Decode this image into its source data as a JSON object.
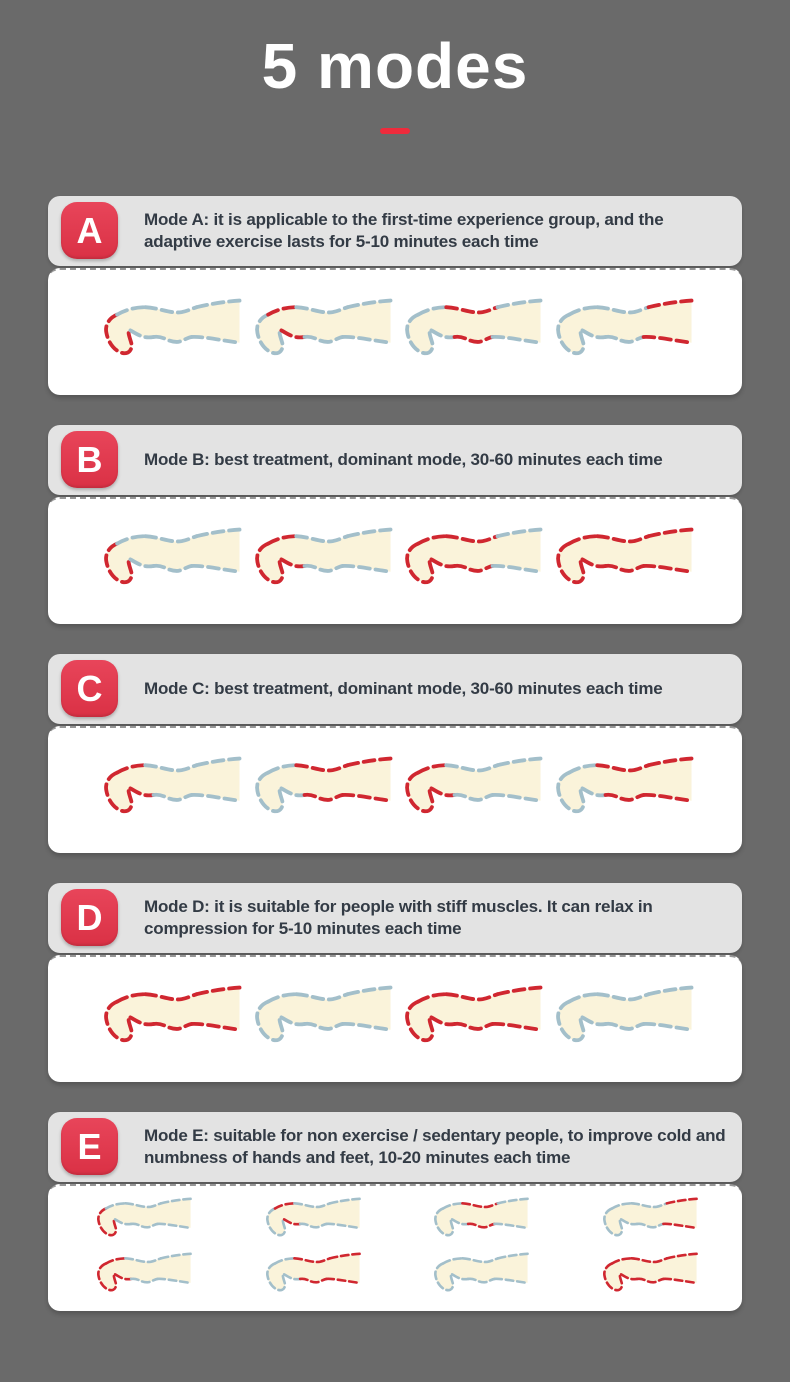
{
  "page": {
    "title": "5 modes",
    "background": "#6a6a6a",
    "title_color": "#ffffff",
    "accent_red": "#ee2b3c"
  },
  "legs": {
    "segments": [
      "foot",
      "ankle",
      "calf",
      "thigh"
    ],
    "colors": {
      "inflated": "#d02730",
      "deflated": "#a3bfca",
      "leg_fill": "#faf3da",
      "badge_red": "#e13b4d"
    }
  },
  "modes": [
    {
      "letter": "A",
      "description": "Mode A: it is applicable to the first-time experience group, and the adaptive exercise lasts for 5-10 minutes each time",
      "rows": [
        [
          [
            "foot"
          ],
          [
            "ankle"
          ],
          [
            "calf"
          ],
          [
            "thigh"
          ]
        ]
      ]
    },
    {
      "letter": "B",
      "description": "Mode B: best treatment, dominant mode, 30-60 minutes each time",
      "rows": [
        [
          [
            "foot"
          ],
          [
            "foot",
            "ankle"
          ],
          [
            "foot",
            "ankle",
            "calf"
          ],
          [
            "foot",
            "ankle",
            "calf",
            "thigh"
          ]
        ]
      ]
    },
    {
      "letter": "C",
      "description": "Mode C: best treatment, dominant mode, 30-60 minutes each time",
      "rows": [
        [
          [
            "foot",
            "ankle"
          ],
          [
            "calf",
            "thigh"
          ],
          [
            "foot",
            "ankle"
          ],
          [
            "calf",
            "thigh"
          ]
        ]
      ]
    },
    {
      "letter": "D",
      "description": "Mode D: it is suitable for people with stiff muscles. It can relax in compression for 5-10 minutes each time",
      "rows": [
        [
          [
            "foot",
            "ankle",
            "calf",
            "thigh"
          ],
          [],
          [
            "foot",
            "ankle",
            "calf",
            "thigh"
          ],
          []
        ]
      ]
    },
    {
      "letter": "E",
      "description": "Mode E: suitable for non exercise / sedentary people, to improve cold and numbness of hands and feet, 10-20 minutes each time",
      "rows": [
        [
          [
            "foot"
          ],
          [
            "ankle"
          ],
          [
            "calf"
          ],
          [
            "thigh"
          ]
        ],
        [
          [
            "foot",
            "ankle"
          ],
          [
            "calf",
            "thigh"
          ],
          [],
          [
            "foot",
            "ankle",
            "calf",
            "thigh"
          ]
        ]
      ]
    }
  ]
}
